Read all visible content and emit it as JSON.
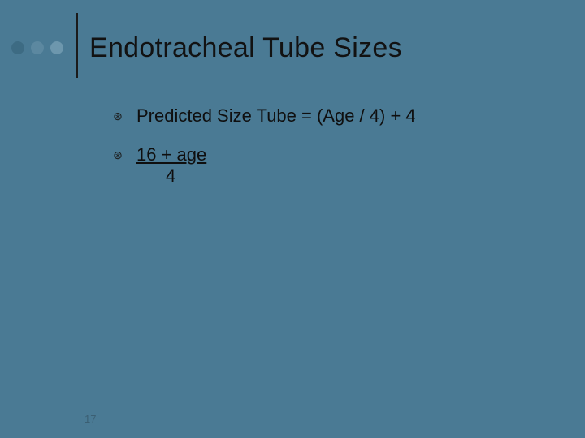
{
  "colors": {
    "background": "#4a7a94",
    "dot1": "#3d6b83",
    "dot2": "#5c88a0",
    "dot3": "#6d97ad",
    "text": "#121212",
    "line": "#1b1b1b",
    "pagenum": "#3b5f73"
  },
  "header": {
    "title": "Endotracheal Tube Sizes",
    "title_fontsize": 34
  },
  "bullets": [
    {
      "text": "Predicted Size Tube = (Age / 4) + 4"
    },
    {
      "fraction_top": "16 + age",
      "fraction_bottom": "4"
    }
  ],
  "bullet_marker": "⊛",
  "content_fontsize": 22,
  "page_number": "17"
}
